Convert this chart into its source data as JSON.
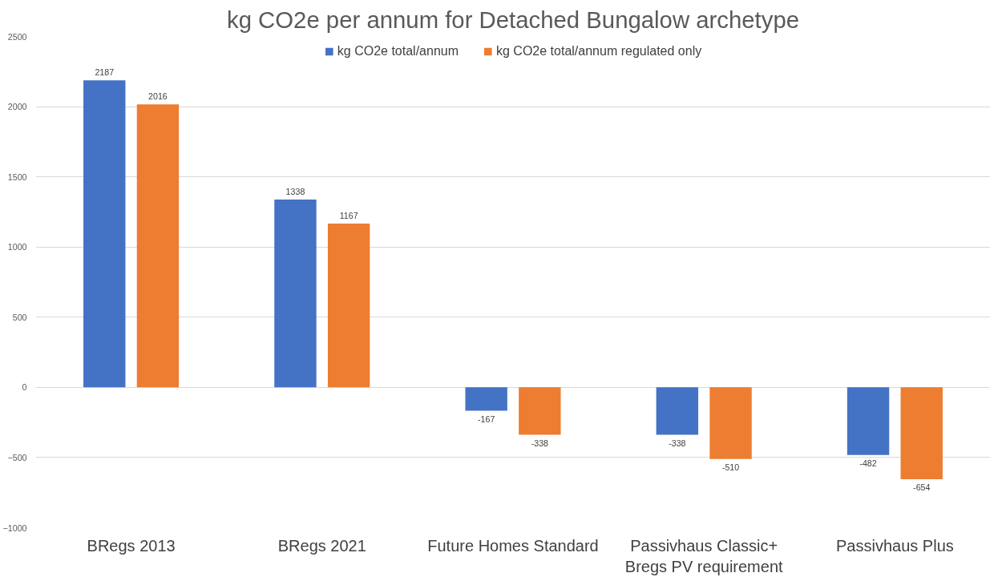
{
  "chart_data": {
    "type": "bar",
    "title": "kg CO2e per annum for Detached Bungalow archetype",
    "categories": [
      "BRegs 2013",
      "BRegs 2021",
      "Future Homes Standard",
      "Passivhaus Classic+ Bregs PV requirement",
      "Passivhaus Plus"
    ],
    "series": [
      {
        "name": "kg CO2e total/annum",
        "color": "#4472c4",
        "values": [
          2187,
          1338,
          -167,
          -338,
          -482
        ]
      },
      {
        "name": "kg CO2e total/annum regulated only",
        "color": "#ed7d31",
        "values": [
          2016,
          1167,
          -338,
          -510,
          -654
        ]
      }
    ],
    "ylim": [
      -1000,
      2500
    ],
    "yticks": [
      -1000,
      -500,
      0,
      500,
      1000,
      1500,
      2000,
      2500
    ],
    "grid": "y",
    "legend": "top",
    "data_labels": true
  }
}
